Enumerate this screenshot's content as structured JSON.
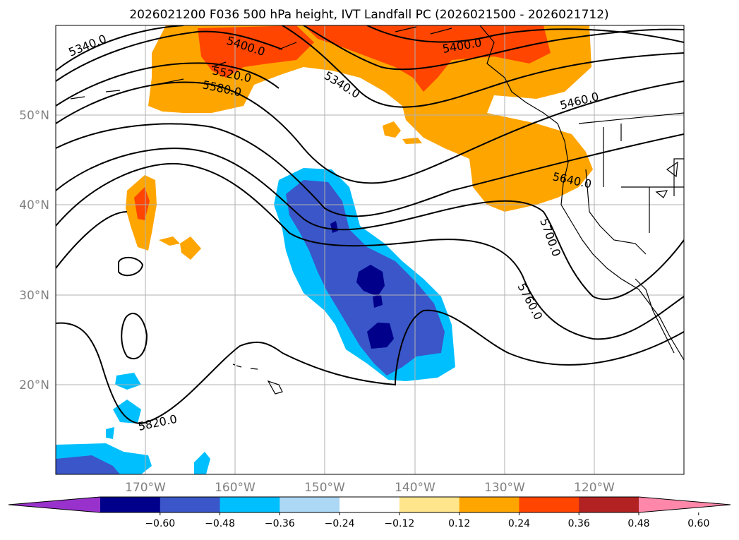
{
  "title": "2026021200 F036 500 hPa height, IVT Landfall PC (2026021500 - 2026021712)",
  "lat_labels": [
    "50°N",
    "40°N",
    "30°N",
    "20°N"
  ],
  "lon_labels": [
    "170°W",
    "160°W",
    "150°W",
    "140°W",
    "130°W",
    "120°W"
  ],
  "contour_labels": [
    "5340.0",
    "5400.0",
    "5520.0",
    "5580.0",
    "5340.0",
    "5400.0",
    "5460.0",
    "5640.0",
    "5700.0",
    "5760.0",
    "5820.0"
  ],
  "colorbar": {
    "ticks": [
      "−0.60",
      "−0.48",
      "−0.36",
      "−0.24",
      "−0.12",
      "0.12",
      "0.24",
      "0.36",
      "0.48",
      "0.60"
    ],
    "colors": [
      "#9932cc",
      "#00008b",
      "#3a56c8",
      "#00bfff",
      "#add8f5",
      "#ffffff",
      "#ffe68c",
      "#ffa500",
      "#ff4500",
      "#b22222",
      "#ff88aa"
    ]
  },
  "colors": {
    "neg_strong": "#00008b",
    "neg_mid": "#3a56c8",
    "neg_weak": "#00bfff",
    "neg_faint": "#add8f5",
    "pos_faint": "#ffe68c",
    "pos_weak": "#ffa500",
    "pos_mid": "#ff4500",
    "grid": "#b0b0b0"
  }
}
